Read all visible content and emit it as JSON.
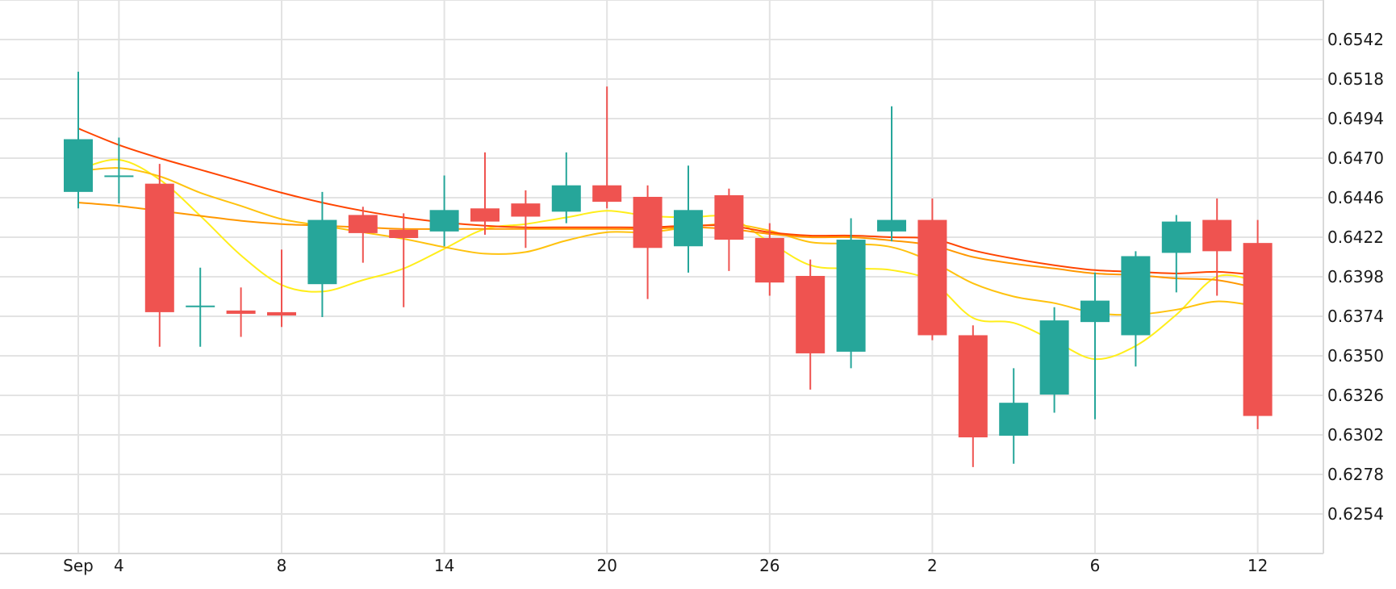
{
  "colors": {
    "up": "#26a69a",
    "down": "#ef5350",
    "grid": "#e3e3e3",
    "text": "#1a1a1a",
    "ma_lines": [
      "#ffee1a",
      "#ffc20e",
      "#ff9800",
      "#ff4500"
    ]
  },
  "chart_data": {
    "type": "candlestick",
    "title": "",
    "xlabel": "",
    "ylabel": "",
    "ylim": [
      0.623,
      0.6566
    ],
    "grid": true,
    "y_axis_side": "right",
    "y_ticks": [
      "0.6254",
      "0.6278",
      "0.6302",
      "0.6326",
      "0.6350",
      "0.6374",
      "0.6398",
      "0.6422",
      "0.6446",
      "0.6470",
      "0.6494",
      "0.6518",
      "0.6542"
    ],
    "x_ticks": [
      {
        "label": "Sep",
        "index": 0
      },
      {
        "label": "4",
        "index": 1
      },
      {
        "label": "8",
        "index": 5
      },
      {
        "label": "14",
        "index": 9
      },
      {
        "label": "20",
        "index": 13
      },
      {
        "label": "26",
        "index": 17
      },
      {
        "label": "2",
        "index": 21
      },
      {
        "label": "6",
        "index": 25
      },
      {
        "label": "12",
        "index": 29
      }
    ],
    "candles": [
      {
        "o": 0.64495,
        "h": 0.65225,
        "l": 0.64395,
        "c": 0.64815
      },
      {
        "o": 0.64595,
        "h": 0.64825,
        "l": 0.64425,
        "c": 0.64595
      },
      {
        "o": 0.64545,
        "h": 0.64665,
        "l": 0.63555,
        "c": 0.63765
      },
      {
        "o": 0.63805,
        "h": 0.64035,
        "l": 0.63555,
        "c": 0.63805
      },
      {
        "o": 0.63775,
        "h": 0.63915,
        "l": 0.63615,
        "c": 0.63755
      },
      {
        "o": 0.63765,
        "h": 0.64145,
        "l": 0.63675,
        "c": 0.63745
      },
      {
        "o": 0.63935,
        "h": 0.64495,
        "l": 0.63735,
        "c": 0.64325
      },
      {
        "o": 0.64355,
        "h": 0.64405,
        "l": 0.64065,
        "c": 0.64245
      },
      {
        "o": 0.64265,
        "h": 0.64365,
        "l": 0.63795,
        "c": 0.64215
      },
      {
        "o": 0.64255,
        "h": 0.64595,
        "l": 0.64165,
        "c": 0.64385
      },
      {
        "o": 0.64395,
        "h": 0.64735,
        "l": 0.64235,
        "c": 0.64315
      },
      {
        "o": 0.64425,
        "h": 0.64505,
        "l": 0.64155,
        "c": 0.64345
      },
      {
        "o": 0.64375,
        "h": 0.64735,
        "l": 0.64305,
        "c": 0.64535
      },
      {
        "o": 0.64535,
        "h": 0.65135,
        "l": 0.64395,
        "c": 0.64435
      },
      {
        "o": 0.64465,
        "h": 0.64535,
        "l": 0.63845,
        "c": 0.64155
      },
      {
        "o": 0.64165,
        "h": 0.64655,
        "l": 0.64005,
        "c": 0.64385
      },
      {
        "o": 0.64475,
        "h": 0.64515,
        "l": 0.64015,
        "c": 0.64205
      },
      {
        "o": 0.64215,
        "h": 0.64305,
        "l": 0.63865,
        "c": 0.63945
      },
      {
        "o": 0.63985,
        "h": 0.64085,
        "l": 0.63295,
        "c": 0.63515
      },
      {
        "o": 0.63525,
        "h": 0.64335,
        "l": 0.63425,
        "c": 0.64205
      },
      {
        "o": 0.64255,
        "h": 0.65015,
        "l": 0.64195,
        "c": 0.64325
      },
      {
        "o": 0.64325,
        "h": 0.64455,
        "l": 0.63595,
        "c": 0.63625
      },
      {
        "o": 0.63625,
        "h": 0.63685,
        "l": 0.62825,
        "c": 0.63005
      },
      {
        "o": 0.63015,
        "h": 0.63425,
        "l": 0.62845,
        "c": 0.63215
      },
      {
        "o": 0.63265,
        "h": 0.63795,
        "l": 0.63155,
        "c": 0.63715
      },
      {
        "o": 0.63705,
        "h": 0.64005,
        "l": 0.63115,
        "c": 0.63835
      },
      {
        "o": 0.63625,
        "h": 0.64135,
        "l": 0.63435,
        "c": 0.64105
      },
      {
        "o": 0.64125,
        "h": 0.64355,
        "l": 0.63885,
        "c": 0.64315
      },
      {
        "o": 0.64325,
        "h": 0.64455,
        "l": 0.63865,
        "c": 0.64135
      },
      {
        "o": 0.64185,
        "h": 0.64325,
        "l": 0.63055,
        "c": 0.63135
      }
    ],
    "series": [
      {
        "values": [
          0.6463,
          0.6469,
          0.6457,
          0.6435,
          0.6411,
          0.6393,
          0.6389,
          0.6396,
          0.6403,
          0.6415,
          0.6427,
          0.643,
          0.6434,
          0.6438,
          0.6435,
          0.6434,
          0.6434,
          0.6419,
          0.6405,
          0.6403,
          0.6402,
          0.6395,
          0.6373,
          0.637,
          0.6359,
          0.6348,
          0.6356,
          0.6375,
          0.6398,
          0.6395
        ]
      },
      {
        "values": [
          0.6462,
          0.6464,
          0.6459,
          0.6449,
          0.6441,
          0.6433,
          0.6429,
          0.6425,
          0.6421,
          0.6416,
          0.6412,
          0.6413,
          0.642,
          0.6425,
          0.6425,
          0.6428,
          0.643,
          0.6426,
          0.6419,
          0.6418,
          0.6416,
          0.6407,
          0.6394,
          0.6386,
          0.6382,
          0.6376,
          0.6375,
          0.6378,
          0.6383,
          0.638
        ]
      },
      {
        "values": [
          0.6443,
          0.6441,
          0.6438,
          0.6435,
          0.6432,
          0.643,
          0.6429,
          0.6428,
          0.6427,
          0.6427,
          0.6427,
          0.6427,
          0.6427,
          0.6427,
          0.6427,
          0.6428,
          0.6427,
          0.6424,
          0.6422,
          0.6422,
          0.642,
          0.6417,
          0.641,
          0.6406,
          0.6403,
          0.64,
          0.6399,
          0.6397,
          0.6396,
          0.6391
        ]
      },
      {
        "values": [
          0.6488,
          0.6478,
          0.647,
          0.6463,
          0.6456,
          0.6449,
          0.6443,
          0.6438,
          0.6434,
          0.6431,
          0.6429,
          0.6428,
          0.6428,
          0.6428,
          0.6428,
          0.6429,
          0.6429,
          0.6425,
          0.6423,
          0.6423,
          0.6422,
          0.6421,
          0.6414,
          0.6409,
          0.6405,
          0.6402,
          0.6401,
          0.64,
          0.6401,
          0.6399
        ]
      }
    ]
  }
}
